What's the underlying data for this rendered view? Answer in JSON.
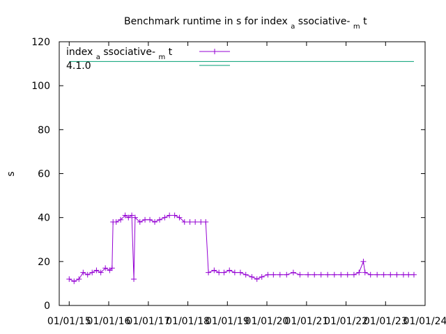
{
  "chart_data": {
    "type": "line",
    "title": {
      "main": "Benchmark runtime in s for index",
      "sub1": "a",
      "mid": "ssociative-",
      "sub2": "m",
      "end": "t"
    },
    "ylabel": "s",
    "xlabel": "",
    "ylim": [
      0,
      120
    ],
    "yticks": [
      0,
      20,
      40,
      60,
      80,
      100,
      120
    ],
    "xlim": [
      "2014-10-01",
      "2024-01-01"
    ],
    "xticks": [
      {
        "date": "2015-01-01",
        "label": "01/01/15"
      },
      {
        "date": "2016-01-01",
        "label": "01/01/16"
      },
      {
        "date": "2017-01-01",
        "label": "01/01/17"
      },
      {
        "date": "2018-01-01",
        "label": "01/01/18"
      },
      {
        "date": "2019-01-01",
        "label": "01/01/19"
      },
      {
        "date": "2020-01-01",
        "label": "01/01/20"
      },
      {
        "date": "2021-01-01",
        "label": "01/01/21"
      },
      {
        "date": "2022-01-01",
        "label": "01/01/22"
      },
      {
        "date": "2023-01-01",
        "label": "01/01/23"
      },
      {
        "date": "2024-01-01",
        "label": "01/01/24"
      }
    ],
    "legend": {
      "placement": "top-left",
      "entries": [
        {
          "name_main": "index",
          "name_sub1": "a",
          "name_mid": "ssociative-",
          "name_sub2": "m",
          "name_end": "t",
          "color": "#9400d3",
          "marker": "plus"
        },
        {
          "name": "4.1.0",
          "color": "#009e73",
          "marker": "none"
        }
      ]
    },
    "series": [
      {
        "color": "#9400d3",
        "points": [
          [
            "2015-01-01",
            12
          ],
          [
            "2015-02-15",
            11
          ],
          [
            "2015-04-01",
            12
          ],
          [
            "2015-05-10",
            15
          ],
          [
            "2015-06-20",
            14
          ],
          [
            "2015-08-01",
            15
          ],
          [
            "2015-09-10",
            16
          ],
          [
            "2015-10-20",
            15
          ],
          [
            "2015-12-01",
            17
          ],
          [
            "2016-01-10",
            16
          ],
          [
            "2016-02-01",
            17
          ],
          [
            "2016-02-10",
            38
          ],
          [
            "2016-03-10",
            38
          ],
          [
            "2016-04-20",
            39
          ],
          [
            "2016-06-01",
            41
          ],
          [
            "2016-07-01",
            40
          ],
          [
            "2016-08-01",
            41
          ],
          [
            "2016-08-20",
            12
          ],
          [
            "2016-09-01",
            40
          ],
          [
            "2016-10-15",
            38
          ],
          [
            "2016-12-01",
            39
          ],
          [
            "2017-01-15",
            39
          ],
          [
            "2017-03-01",
            38
          ],
          [
            "2017-04-15",
            39
          ],
          [
            "2017-06-01",
            40
          ],
          [
            "2017-07-15",
            41
          ],
          [
            "2017-09-01",
            41
          ],
          [
            "2017-10-15",
            40
          ],
          [
            "2017-12-01",
            38
          ],
          [
            "2018-01-20",
            38
          ],
          [
            "2018-03-10",
            38
          ],
          [
            "2018-05-01",
            38
          ],
          [
            "2018-06-15",
            38
          ],
          [
            "2018-07-10",
            15
          ],
          [
            "2018-09-01",
            16
          ],
          [
            "2018-10-15",
            15
          ],
          [
            "2018-12-01",
            15
          ],
          [
            "2019-01-20",
            16
          ],
          [
            "2019-03-10",
            15
          ],
          [
            "2019-05-01",
            15
          ],
          [
            "2019-06-20",
            14
          ],
          [
            "2019-08-15",
            13
          ],
          [
            "2019-10-01",
            12
          ],
          [
            "2019-11-15",
            13
          ],
          [
            "2020-01-10",
            14
          ],
          [
            "2020-03-01",
            14
          ],
          [
            "2020-05-01",
            14
          ],
          [
            "2020-07-01",
            14
          ],
          [
            "2020-09-01",
            15
          ],
          [
            "2020-11-01",
            14
          ],
          [
            "2021-01-15",
            14
          ],
          [
            "2021-03-15",
            14
          ],
          [
            "2021-05-15",
            14
          ],
          [
            "2021-07-15",
            14
          ],
          [
            "2021-09-15",
            14
          ],
          [
            "2021-11-15",
            14
          ],
          [
            "2022-01-15",
            14
          ],
          [
            "2022-03-15",
            14
          ],
          [
            "2022-05-01",
            15
          ],
          [
            "2022-06-10",
            20
          ],
          [
            "2022-06-25",
            15
          ],
          [
            "2022-08-15",
            14
          ],
          [
            "2022-10-15",
            14
          ],
          [
            "2022-12-15",
            14
          ],
          [
            "2023-02-15",
            14
          ],
          [
            "2023-04-15",
            14
          ],
          [
            "2023-06-15",
            14
          ],
          [
            "2023-08-01",
            14
          ],
          [
            "2023-09-20",
            14
          ]
        ]
      },
      {
        "color": "#009e73",
        "constant": 111,
        "x_range": [
          "2015-01-01",
          "2023-09-20"
        ]
      }
    ]
  }
}
